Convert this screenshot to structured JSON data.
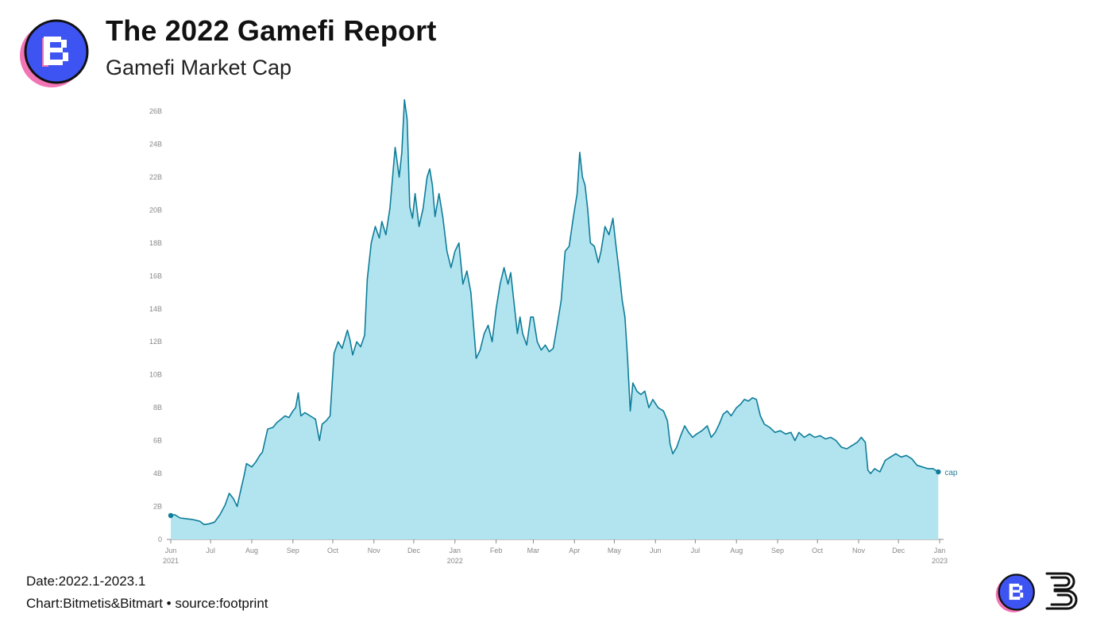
{
  "header": {
    "title": "The 2022 Gamefi Report",
    "subtitle": "Gamefi Market Cap"
  },
  "footer": {
    "date": "Date:2022.1-2023.1",
    "credit": "Chart:Bitmetis&Bitmart • source:footprint"
  },
  "colors": {
    "line": "#0e7d99",
    "fill": "#b2e4f0",
    "logo_blue": "#3d54f2",
    "logo_pink": "#f274b4"
  },
  "icons": {
    "header_logo": "bitmetis-logo-icon",
    "footer_logo_1": "bitmetis-logo-icon",
    "footer_logo_2": "bitmart-logo-icon"
  },
  "chart_data": {
    "type": "area",
    "x_type": "date",
    "ylim": [
      0,
      26
    ],
    "y_ticks": [
      "0",
      "2B",
      "4B",
      "6B",
      "8B",
      "10B",
      "12B",
      "14B",
      "16B",
      "18B",
      "20B",
      "22B",
      "24B",
      "26B"
    ],
    "y_tick_values": [
      0,
      2,
      4,
      6,
      8,
      10,
      12,
      14,
      16,
      18,
      20,
      22,
      24,
      26
    ],
    "x_ticks": [
      {
        "date": "2021-06-01",
        "label": "Jun",
        "sub": "2021"
      },
      {
        "date": "2021-07-01",
        "label": "Jul",
        "sub": ""
      },
      {
        "date": "2021-08-01",
        "label": "Aug",
        "sub": ""
      },
      {
        "date": "2021-09-01",
        "label": "Sep",
        "sub": ""
      },
      {
        "date": "2021-10-01",
        "label": "Oct",
        "sub": ""
      },
      {
        "date": "2021-11-01",
        "label": "Nov",
        "sub": ""
      },
      {
        "date": "2021-12-01",
        "label": "Dec",
        "sub": ""
      },
      {
        "date": "2022-01-01",
        "label": "Jan",
        "sub": "2022"
      },
      {
        "date": "2022-02-01",
        "label": "Feb",
        "sub": ""
      },
      {
        "date": "2022-03-01",
        "label": "Mar",
        "sub": ""
      },
      {
        "date": "2022-04-01",
        "label": "Apr",
        "sub": ""
      },
      {
        "date": "2022-05-01",
        "label": "May",
        "sub": ""
      },
      {
        "date": "2022-06-01",
        "label": "Jun",
        "sub": ""
      },
      {
        "date": "2022-07-01",
        "label": "Jul",
        "sub": ""
      },
      {
        "date": "2022-08-01",
        "label": "Aug",
        "sub": ""
      },
      {
        "date": "2022-09-01",
        "label": "Sep",
        "sub": ""
      },
      {
        "date": "2022-10-01",
        "label": "Oct",
        "sub": ""
      },
      {
        "date": "2022-11-01",
        "label": "Nov",
        "sub": ""
      },
      {
        "date": "2022-12-01",
        "label": "Dec",
        "sub": ""
      },
      {
        "date": "2023-01-01",
        "label": "Jan",
        "sub": "2023"
      }
    ],
    "series": [
      {
        "name": "cap",
        "points": [
          [
            "2021-06-01",
            1.45
          ],
          [
            "2021-06-04",
            1.5
          ],
          [
            "2021-06-08",
            1.3
          ],
          [
            "2021-06-13",
            1.25
          ],
          [
            "2021-06-18",
            1.2
          ],
          [
            "2021-06-23",
            1.1
          ],
          [
            "2021-06-26",
            0.9
          ],
          [
            "2021-06-30",
            0.95
          ],
          [
            "2021-07-04",
            1.05
          ],
          [
            "2021-07-08",
            1.5
          ],
          [
            "2021-07-12",
            2.1
          ],
          [
            "2021-07-15",
            2.8
          ],
          [
            "2021-07-18",
            2.5
          ],
          [
            "2021-07-21",
            2.0
          ],
          [
            "2021-07-24",
            3.1
          ],
          [
            "2021-07-26",
            3.8
          ],
          [
            "2021-07-28",
            4.6
          ],
          [
            "2021-08-01",
            4.4
          ],
          [
            "2021-08-04",
            4.7
          ],
          [
            "2021-08-07",
            5.1
          ],
          [
            "2021-08-09",
            5.3
          ],
          [
            "2021-08-11",
            6.0
          ],
          [
            "2021-08-13",
            6.7
          ],
          [
            "2021-08-17",
            6.8
          ],
          [
            "2021-08-20",
            7.1
          ],
          [
            "2021-08-23",
            7.3
          ],
          [
            "2021-08-26",
            7.5
          ],
          [
            "2021-08-29",
            7.4
          ],
          [
            "2021-09-01",
            7.8
          ],
          [
            "2021-09-03",
            8.0
          ],
          [
            "2021-09-05",
            8.9
          ],
          [
            "2021-09-07",
            7.5
          ],
          [
            "2021-09-10",
            7.7
          ],
          [
            "2021-09-14",
            7.5
          ],
          [
            "2021-09-18",
            7.3
          ],
          [
            "2021-09-21",
            6.0
          ],
          [
            "2021-09-23",
            7.0
          ],
          [
            "2021-09-26",
            7.2
          ],
          [
            "2021-09-29",
            7.5
          ],
          [
            "2021-10-02",
            11.3
          ],
          [
            "2021-10-05",
            12.0
          ],
          [
            "2021-10-08",
            11.6
          ],
          [
            "2021-10-12",
            12.7
          ],
          [
            "2021-10-14",
            12.1
          ],
          [
            "2021-10-16",
            11.2
          ],
          [
            "2021-10-19",
            12.0
          ],
          [
            "2021-10-22",
            11.7
          ],
          [
            "2021-10-25",
            12.4
          ],
          [
            "2021-10-27",
            15.8
          ],
          [
            "2021-10-30",
            18.0
          ],
          [
            "2021-11-02",
            19.0
          ],
          [
            "2021-11-05",
            18.3
          ],
          [
            "2021-11-07",
            19.3
          ],
          [
            "2021-11-10",
            18.5
          ],
          [
            "2021-11-13",
            20.1
          ],
          [
            "2021-11-17",
            23.8
          ],
          [
            "2021-11-20",
            22.0
          ],
          [
            "2021-11-22",
            23.5
          ],
          [
            "2021-11-24",
            26.7
          ],
          [
            "2021-11-26",
            25.5
          ],
          [
            "2021-11-28",
            20.2
          ],
          [
            "2021-11-30",
            19.5
          ],
          [
            "2021-12-02",
            21.0
          ],
          [
            "2021-12-05",
            19.0
          ],
          [
            "2021-12-08",
            20.1
          ],
          [
            "2021-12-11",
            22.0
          ],
          [
            "2021-12-13",
            22.5
          ],
          [
            "2021-12-15",
            21.5
          ],
          [
            "2021-12-17",
            19.6
          ],
          [
            "2021-12-20",
            21.0
          ],
          [
            "2021-12-23",
            19.5
          ],
          [
            "2021-12-26",
            17.5
          ],
          [
            "2021-12-29",
            16.5
          ],
          [
            "2022-01-01",
            17.5
          ],
          [
            "2022-01-04",
            18.0
          ],
          [
            "2022-01-07",
            15.5
          ],
          [
            "2022-01-10",
            16.3
          ],
          [
            "2022-01-13",
            15.0
          ],
          [
            "2022-01-17",
            11.0
          ],
          [
            "2022-01-20",
            11.5
          ],
          [
            "2022-01-23",
            12.5
          ],
          [
            "2022-01-26",
            13.0
          ],
          [
            "2022-01-29",
            12.0
          ],
          [
            "2022-02-01",
            14.0
          ],
          [
            "2022-02-04",
            15.5
          ],
          [
            "2022-02-07",
            16.5
          ],
          [
            "2022-02-10",
            15.5
          ],
          [
            "2022-02-12",
            16.2
          ],
          [
            "2022-02-15",
            14.0
          ],
          [
            "2022-02-17",
            12.5
          ],
          [
            "2022-02-19",
            13.5
          ],
          [
            "2022-02-21",
            12.5
          ],
          [
            "2022-02-24",
            11.8
          ],
          [
            "2022-02-27",
            13.5
          ],
          [
            "2022-03-01",
            13.5
          ],
          [
            "2022-03-04",
            12.0
          ],
          [
            "2022-03-07",
            11.5
          ],
          [
            "2022-03-10",
            11.8
          ],
          [
            "2022-03-13",
            11.4
          ],
          [
            "2022-03-16",
            11.6
          ],
          [
            "2022-03-19",
            13.0
          ],
          [
            "2022-03-22",
            14.5
          ],
          [
            "2022-03-25",
            17.5
          ],
          [
            "2022-03-28",
            17.8
          ],
          [
            "2022-03-31",
            19.5
          ],
          [
            "2022-04-03",
            21.0
          ],
          [
            "2022-04-05",
            23.5
          ],
          [
            "2022-04-07",
            22.0
          ],
          [
            "2022-04-09",
            21.5
          ],
          [
            "2022-04-11",
            20.0
          ],
          [
            "2022-04-13",
            18.0
          ],
          [
            "2022-04-16",
            17.8
          ],
          [
            "2022-04-19",
            16.8
          ],
          [
            "2022-04-21",
            17.5
          ],
          [
            "2022-04-24",
            19.0
          ],
          [
            "2022-04-27",
            18.5
          ],
          [
            "2022-04-30",
            19.5
          ],
          [
            "2022-05-02",
            18.0
          ],
          [
            "2022-05-05",
            16.0
          ],
          [
            "2022-05-07",
            14.5
          ],
          [
            "2022-05-09",
            13.5
          ],
          [
            "2022-05-11",
            11.0
          ],
          [
            "2022-05-13",
            7.8
          ],
          [
            "2022-05-15",
            9.5
          ],
          [
            "2022-05-18",
            9.0
          ],
          [
            "2022-05-21",
            8.8
          ],
          [
            "2022-05-24",
            9.0
          ],
          [
            "2022-05-27",
            8.0
          ],
          [
            "2022-05-30",
            8.5
          ],
          [
            "2022-06-03",
            8.0
          ],
          [
            "2022-06-07",
            7.8
          ],
          [
            "2022-06-10",
            7.2
          ],
          [
            "2022-06-12",
            5.8
          ],
          [
            "2022-06-14",
            5.2
          ],
          [
            "2022-06-17",
            5.6
          ],
          [
            "2022-06-20",
            6.3
          ],
          [
            "2022-06-23",
            6.9
          ],
          [
            "2022-06-26",
            6.5
          ],
          [
            "2022-06-29",
            6.2
          ],
          [
            "2022-07-02",
            6.4
          ],
          [
            "2022-07-06",
            6.6
          ],
          [
            "2022-07-10",
            6.9
          ],
          [
            "2022-07-13",
            6.2
          ],
          [
            "2022-07-16",
            6.5
          ],
          [
            "2022-07-19",
            7.0
          ],
          [
            "2022-07-22",
            7.6
          ],
          [
            "2022-07-25",
            7.8
          ],
          [
            "2022-07-28",
            7.5
          ],
          [
            "2022-08-01",
            8.0
          ],
          [
            "2022-08-04",
            8.2
          ],
          [
            "2022-08-07",
            8.5
          ],
          [
            "2022-08-10",
            8.4
          ],
          [
            "2022-08-13",
            8.6
          ],
          [
            "2022-08-16",
            8.5
          ],
          [
            "2022-08-19",
            7.5
          ],
          [
            "2022-08-22",
            7.0
          ],
          [
            "2022-08-26",
            6.8
          ],
          [
            "2022-08-30",
            6.5
          ],
          [
            "2022-09-03",
            6.6
          ],
          [
            "2022-09-07",
            6.4
          ],
          [
            "2022-09-11",
            6.5
          ],
          [
            "2022-09-14",
            6.0
          ],
          [
            "2022-09-17",
            6.5
          ],
          [
            "2022-09-21",
            6.2
          ],
          [
            "2022-09-25",
            6.4
          ],
          [
            "2022-09-29",
            6.2
          ],
          [
            "2022-10-03",
            6.3
          ],
          [
            "2022-10-07",
            6.1
          ],
          [
            "2022-10-11",
            6.2
          ],
          [
            "2022-10-15",
            6.0
          ],
          [
            "2022-10-19",
            5.6
          ],
          [
            "2022-10-23",
            5.5
          ],
          [
            "2022-10-27",
            5.7
          ],
          [
            "2022-10-31",
            5.9
          ],
          [
            "2022-11-03",
            6.2
          ],
          [
            "2022-11-06",
            5.9
          ],
          [
            "2022-11-08",
            4.2
          ],
          [
            "2022-11-10",
            4.0
          ],
          [
            "2022-11-13",
            4.3
          ],
          [
            "2022-11-17",
            4.1
          ],
          [
            "2022-11-21",
            4.8
          ],
          [
            "2022-11-25",
            5.0
          ],
          [
            "2022-11-29",
            5.2
          ],
          [
            "2022-12-03",
            5.0
          ],
          [
            "2022-12-07",
            5.1
          ],
          [
            "2022-12-11",
            4.9
          ],
          [
            "2022-12-15",
            4.5
          ],
          [
            "2022-12-19",
            4.4
          ],
          [
            "2022-12-23",
            4.3
          ],
          [
            "2022-12-27",
            4.3
          ],
          [
            "2022-12-31",
            4.1
          ]
        ]
      }
    ]
  }
}
